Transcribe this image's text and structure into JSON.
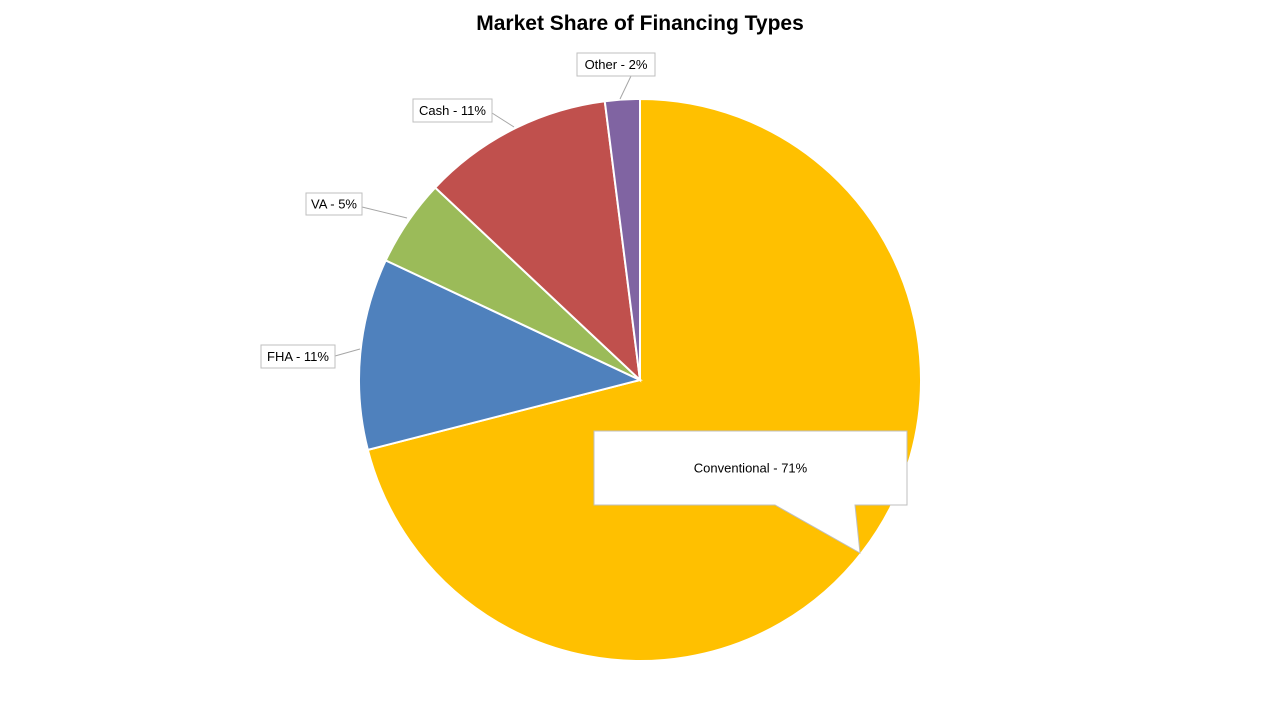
{
  "chart_data": {
    "type": "pie",
    "title": "Market Share of Financing Types",
    "slices": [
      {
        "name": "Conventional",
        "value": 71,
        "label": "Conventional - 71%",
        "color": "#FFC000"
      },
      {
        "name": "FHA",
        "value": 11,
        "label": "FHA - 11%",
        "color": "#4F81BD"
      },
      {
        "name": "VA",
        "value": 5,
        "label": "VA - 5%",
        "color": "#9BBB59"
      },
      {
        "name": "Cash",
        "value": 11,
        "label": "Cash - 11%",
        "color": "#C0504D"
      },
      {
        "name": "Other",
        "value": 2,
        "label": "Other - 2%",
        "color": "#8064A2"
      }
    ],
    "start_angle_deg": 0,
    "direction": "clockwise",
    "legend": "none",
    "data_labels": "callouts"
  }
}
